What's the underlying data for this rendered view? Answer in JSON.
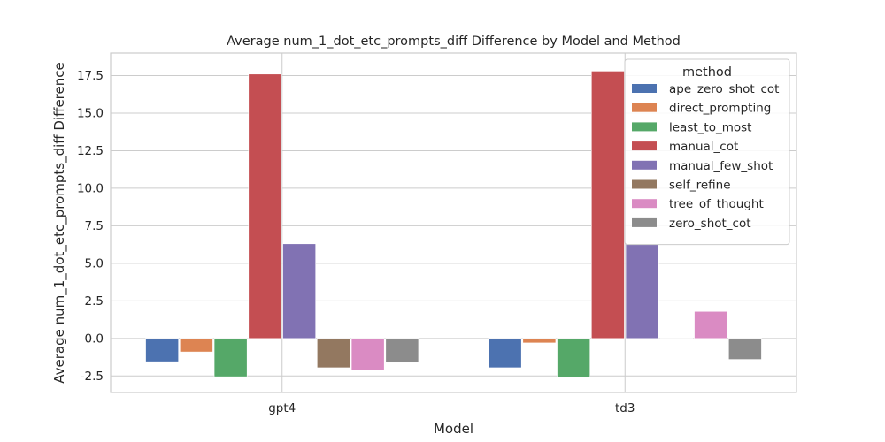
{
  "chart_data": {
    "type": "bar",
    "title": "Average num_1_dot_etc_prompts_diff Difference by Model and Method",
    "xlabel": "Model",
    "ylabel": "Average num_1_dot_etc_prompts_diff Difference",
    "categories": [
      "gpt4",
      "td3"
    ],
    "ylim": [
      -3.6,
      19.0
    ],
    "yticks": [
      -2.5,
      0.0,
      2.5,
      5.0,
      7.5,
      10.0,
      12.5,
      15.0,
      17.5
    ],
    "grid": true,
    "legend": {
      "title": "method",
      "placement": "top-right"
    },
    "series": [
      {
        "name": "ape_zero_shot_cot",
        "color": "#4c72b0",
        "values": [
          -1.55,
          -1.95
        ]
      },
      {
        "name": "direct_prompting",
        "color": "#dd8452",
        "values": [
          -0.9,
          -0.3
        ]
      },
      {
        "name": "least_to_most",
        "color": "#55a868",
        "values": [
          -2.55,
          -2.6
        ]
      },
      {
        "name": "manual_cot",
        "color": "#c44e52",
        "values": [
          17.6,
          17.8
        ]
      },
      {
        "name": "manual_few_shot",
        "color": "#8172b3",
        "values": [
          6.3,
          6.3
        ]
      },
      {
        "name": "self_refine",
        "color": "#937860",
        "values": [
          -1.95,
          -0.05
        ]
      },
      {
        "name": "tree_of_thought",
        "color": "#da8bc3",
        "values": [
          -2.1,
          1.8
        ]
      },
      {
        "name": "zero_shot_cot",
        "color": "#8c8c8c",
        "values": [
          -1.6,
          -1.4
        ]
      }
    ]
  }
}
